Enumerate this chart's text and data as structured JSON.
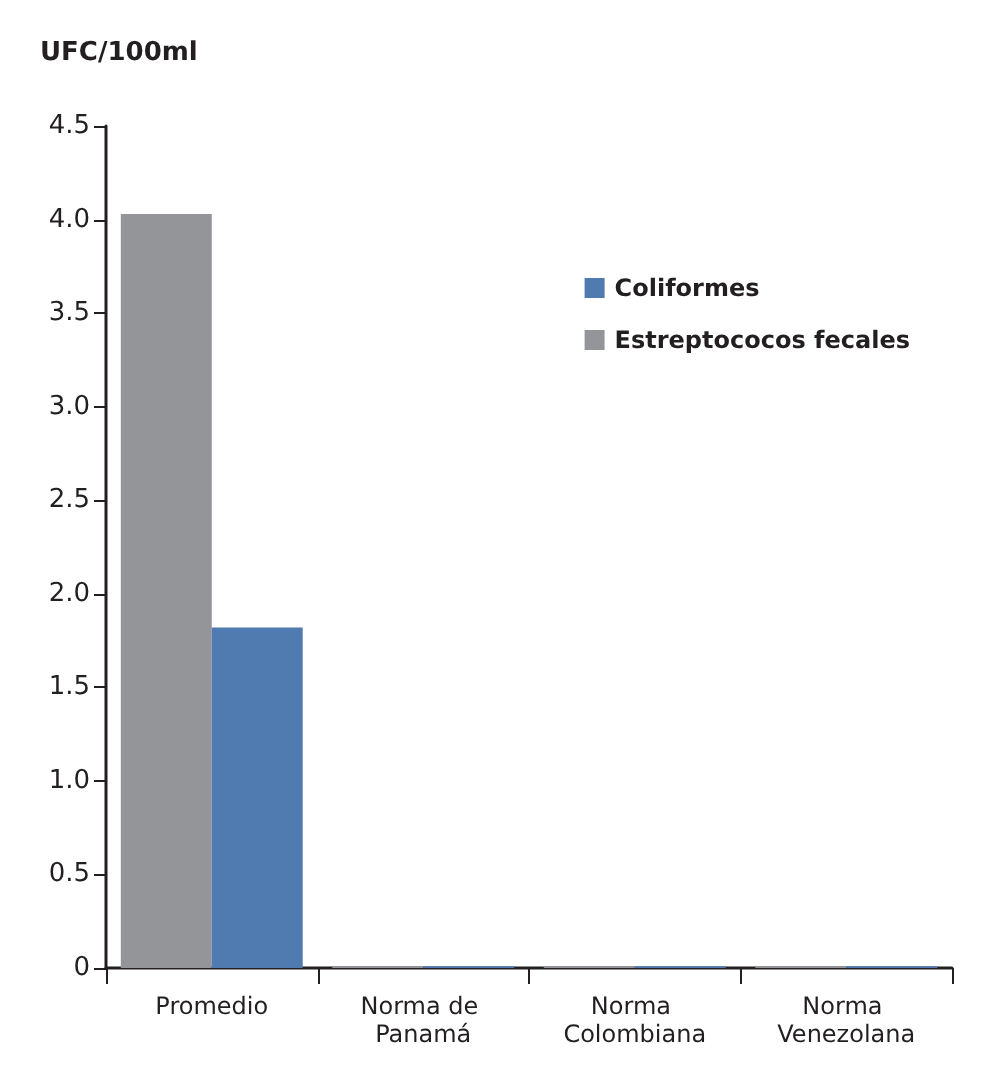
{
  "chart_data": {
    "type": "bar",
    "ylabel": "UFC/100ml",
    "categories": [
      "Promedio",
      "Norma de Panamá",
      "Norma Colombiana",
      "Norma Venezolana"
    ],
    "series": [
      {
        "name": "Estreptococos fecales",
        "color": "#939598",
        "values": [
          4.03,
          0.01,
          0.01,
          0.01
        ]
      },
      {
        "name": "Coliformes",
        "color": "#4f7bb0",
        "values": [
          1.82,
          0.01,
          0.01,
          0.01
        ]
      }
    ],
    "ylim": [
      0,
      4.5
    ],
    "yticks": [
      0,
      {
        "value": 0.5,
        "label": "0.5"
      },
      {
        "value": 1,
        "label": "1.0"
      },
      {
        "value": 1.5,
        "label": "1.5"
      },
      {
        "value": 2,
        "label": "2.0"
      },
      {
        "value": 2.5,
        "label": "2.5"
      },
      {
        "value": 3,
        "label": "3.0"
      },
      {
        "value": 3.5,
        "label": "3.5"
      },
      {
        "value": 4,
        "label": "4.0"
      },
      {
        "value": 4.5,
        "label": "4.5"
      }
    ],
    "grid": false,
    "legend": "top right"
  }
}
